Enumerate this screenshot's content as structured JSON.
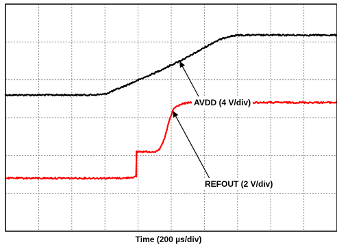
{
  "chart_data": {
    "type": "line",
    "title": "",
    "xlabel": "Time (200 µs/div)",
    "ylabel": "",
    "x_unit": "div",
    "y_unit": "div",
    "xlim": [
      0,
      10
    ],
    "ylim": [
      -6,
      0
    ],
    "grid": true,
    "x_divisions": 10,
    "y_divisions": 6,
    "series": [
      {
        "name": "AVDD (4 V/div)",
        "color": "#000000",
        "points": [
          [
            0.0,
            -2.4
          ],
          [
            2.6,
            -2.4
          ],
          [
            3.0,
            -2.38
          ],
          [
            3.5,
            -2.2
          ],
          [
            4.5,
            -1.82
          ],
          [
            5.5,
            -1.4
          ],
          [
            6.3,
            -1.0
          ],
          [
            6.7,
            -0.86
          ],
          [
            7.0,
            -0.82
          ],
          [
            10.0,
            -0.82
          ]
        ]
      },
      {
        "name": "REFOUT (2 V/div)",
        "color": "#ff0000",
        "points": [
          [
            0.0,
            -4.6
          ],
          [
            3.6,
            -4.6
          ],
          [
            3.95,
            -4.56
          ],
          [
            3.95,
            -3.9
          ],
          [
            4.55,
            -3.9
          ],
          [
            4.65,
            -3.84
          ],
          [
            4.8,
            -3.55
          ],
          [
            4.95,
            -3.05
          ],
          [
            5.08,
            -2.75
          ],
          [
            5.3,
            -2.64
          ],
          [
            5.6,
            -2.6
          ],
          [
            10.0,
            -2.6
          ]
        ]
      }
    ],
    "annotations": [
      {
        "text": "AVDD (4 V/div)",
        "points_to_series": "AVDD (4 V/div)"
      },
      {
        "text": "REFOUT (2 V/div)",
        "points_to_series": "REFOUT (2 V/div)"
      }
    ]
  }
}
